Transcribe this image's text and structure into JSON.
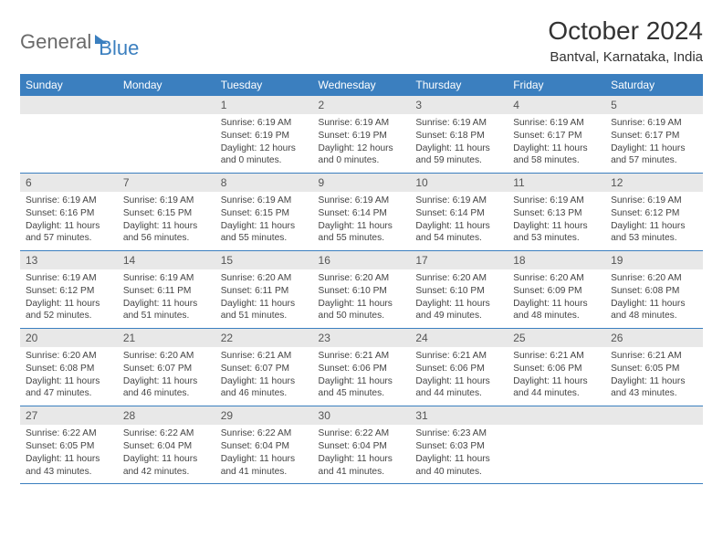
{
  "logo": {
    "word1": "General",
    "word2": "Blue"
  },
  "title": "October 2024",
  "location": "Bantval, Karnataka, India",
  "weekdays": [
    "Sunday",
    "Monday",
    "Tuesday",
    "Wednesday",
    "Thursday",
    "Friday",
    "Saturday"
  ],
  "colors": {
    "header_bg": "#3b7fbf",
    "header_text": "#ffffff",
    "daynum_bg": "#e8e8e8",
    "border": "#3b7fbf",
    "logo_gray": "#6a6a6a",
    "logo_blue": "#3b7fbf"
  },
  "weeks": [
    [
      {
        "n": "",
        "sr": "",
        "ss": "",
        "dl": ""
      },
      {
        "n": "",
        "sr": "",
        "ss": "",
        "dl": ""
      },
      {
        "n": "1",
        "sr": "Sunrise: 6:19 AM",
        "ss": "Sunset: 6:19 PM",
        "dl": "Daylight: 12 hours and 0 minutes."
      },
      {
        "n": "2",
        "sr": "Sunrise: 6:19 AM",
        "ss": "Sunset: 6:19 PM",
        "dl": "Daylight: 12 hours and 0 minutes."
      },
      {
        "n": "3",
        "sr": "Sunrise: 6:19 AM",
        "ss": "Sunset: 6:18 PM",
        "dl": "Daylight: 11 hours and 59 minutes."
      },
      {
        "n": "4",
        "sr": "Sunrise: 6:19 AM",
        "ss": "Sunset: 6:17 PM",
        "dl": "Daylight: 11 hours and 58 minutes."
      },
      {
        "n": "5",
        "sr": "Sunrise: 6:19 AM",
        "ss": "Sunset: 6:17 PM",
        "dl": "Daylight: 11 hours and 57 minutes."
      }
    ],
    [
      {
        "n": "6",
        "sr": "Sunrise: 6:19 AM",
        "ss": "Sunset: 6:16 PM",
        "dl": "Daylight: 11 hours and 57 minutes."
      },
      {
        "n": "7",
        "sr": "Sunrise: 6:19 AM",
        "ss": "Sunset: 6:15 PM",
        "dl": "Daylight: 11 hours and 56 minutes."
      },
      {
        "n": "8",
        "sr": "Sunrise: 6:19 AM",
        "ss": "Sunset: 6:15 PM",
        "dl": "Daylight: 11 hours and 55 minutes."
      },
      {
        "n": "9",
        "sr": "Sunrise: 6:19 AM",
        "ss": "Sunset: 6:14 PM",
        "dl": "Daylight: 11 hours and 55 minutes."
      },
      {
        "n": "10",
        "sr": "Sunrise: 6:19 AM",
        "ss": "Sunset: 6:14 PM",
        "dl": "Daylight: 11 hours and 54 minutes."
      },
      {
        "n": "11",
        "sr": "Sunrise: 6:19 AM",
        "ss": "Sunset: 6:13 PM",
        "dl": "Daylight: 11 hours and 53 minutes."
      },
      {
        "n": "12",
        "sr": "Sunrise: 6:19 AM",
        "ss": "Sunset: 6:12 PM",
        "dl": "Daylight: 11 hours and 53 minutes."
      }
    ],
    [
      {
        "n": "13",
        "sr": "Sunrise: 6:19 AM",
        "ss": "Sunset: 6:12 PM",
        "dl": "Daylight: 11 hours and 52 minutes."
      },
      {
        "n": "14",
        "sr": "Sunrise: 6:19 AM",
        "ss": "Sunset: 6:11 PM",
        "dl": "Daylight: 11 hours and 51 minutes."
      },
      {
        "n": "15",
        "sr": "Sunrise: 6:20 AM",
        "ss": "Sunset: 6:11 PM",
        "dl": "Daylight: 11 hours and 51 minutes."
      },
      {
        "n": "16",
        "sr": "Sunrise: 6:20 AM",
        "ss": "Sunset: 6:10 PM",
        "dl": "Daylight: 11 hours and 50 minutes."
      },
      {
        "n": "17",
        "sr": "Sunrise: 6:20 AM",
        "ss": "Sunset: 6:10 PM",
        "dl": "Daylight: 11 hours and 49 minutes."
      },
      {
        "n": "18",
        "sr": "Sunrise: 6:20 AM",
        "ss": "Sunset: 6:09 PM",
        "dl": "Daylight: 11 hours and 48 minutes."
      },
      {
        "n": "19",
        "sr": "Sunrise: 6:20 AM",
        "ss": "Sunset: 6:08 PM",
        "dl": "Daylight: 11 hours and 48 minutes."
      }
    ],
    [
      {
        "n": "20",
        "sr": "Sunrise: 6:20 AM",
        "ss": "Sunset: 6:08 PM",
        "dl": "Daylight: 11 hours and 47 minutes."
      },
      {
        "n": "21",
        "sr": "Sunrise: 6:20 AM",
        "ss": "Sunset: 6:07 PM",
        "dl": "Daylight: 11 hours and 46 minutes."
      },
      {
        "n": "22",
        "sr": "Sunrise: 6:21 AM",
        "ss": "Sunset: 6:07 PM",
        "dl": "Daylight: 11 hours and 46 minutes."
      },
      {
        "n": "23",
        "sr": "Sunrise: 6:21 AM",
        "ss": "Sunset: 6:06 PM",
        "dl": "Daylight: 11 hours and 45 minutes."
      },
      {
        "n": "24",
        "sr": "Sunrise: 6:21 AM",
        "ss": "Sunset: 6:06 PM",
        "dl": "Daylight: 11 hours and 44 minutes."
      },
      {
        "n": "25",
        "sr": "Sunrise: 6:21 AM",
        "ss": "Sunset: 6:06 PM",
        "dl": "Daylight: 11 hours and 44 minutes."
      },
      {
        "n": "26",
        "sr": "Sunrise: 6:21 AM",
        "ss": "Sunset: 6:05 PM",
        "dl": "Daylight: 11 hours and 43 minutes."
      }
    ],
    [
      {
        "n": "27",
        "sr": "Sunrise: 6:22 AM",
        "ss": "Sunset: 6:05 PM",
        "dl": "Daylight: 11 hours and 43 minutes."
      },
      {
        "n": "28",
        "sr": "Sunrise: 6:22 AM",
        "ss": "Sunset: 6:04 PM",
        "dl": "Daylight: 11 hours and 42 minutes."
      },
      {
        "n": "29",
        "sr": "Sunrise: 6:22 AM",
        "ss": "Sunset: 6:04 PM",
        "dl": "Daylight: 11 hours and 41 minutes."
      },
      {
        "n": "30",
        "sr": "Sunrise: 6:22 AM",
        "ss": "Sunset: 6:04 PM",
        "dl": "Daylight: 11 hours and 41 minutes."
      },
      {
        "n": "31",
        "sr": "Sunrise: 6:23 AM",
        "ss": "Sunset: 6:03 PM",
        "dl": "Daylight: 11 hours and 40 minutes."
      },
      {
        "n": "",
        "sr": "",
        "ss": "",
        "dl": ""
      },
      {
        "n": "",
        "sr": "",
        "ss": "",
        "dl": ""
      }
    ]
  ]
}
